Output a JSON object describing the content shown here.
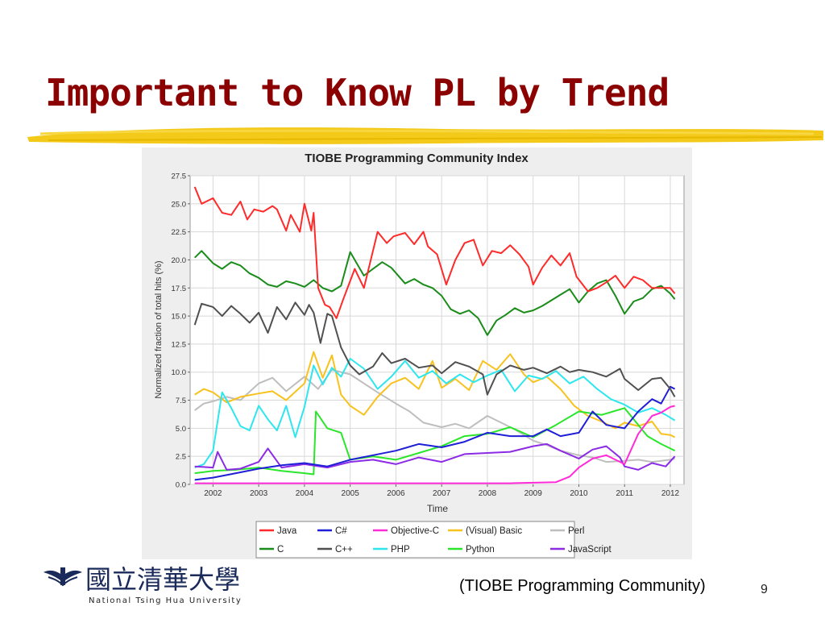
{
  "slide": {
    "title": "Important to Know PL by Trend",
    "caption": "(TIOBE Programming Community)",
    "page_number": "9",
    "university_mark": "國立清華大學",
    "university_name": "National Tsing Hua University",
    "title_color": "#8b0000",
    "highlight_color": "#f2c400"
  },
  "chart_data": {
    "type": "line",
    "title": "TIOBE Programming Community Index",
    "xlabel": "Time",
    "ylabel": "Normalized fraction of total hits (%)",
    "xlim": [
      2001.5,
      2012.3
    ],
    "ylim": [
      0,
      27.5
    ],
    "x_ticks": [
      2002,
      2003,
      2004,
      2005,
      2006,
      2007,
      2008,
      2009,
      2010,
      2011,
      2012
    ],
    "y_ticks": [
      0.0,
      2.5,
      5.0,
      7.5,
      10.0,
      12.5,
      15.0,
      17.5,
      20.0,
      22.5,
      25.0,
      27.5
    ],
    "grid": true,
    "legend_position": "bottom",
    "series": [
      {
        "name": "Java",
        "color": "#ff2a2a",
        "x": [
          2001.6,
          2001.75,
          2002.0,
          2002.2,
          2002.4,
          2002.6,
          2002.75,
          2002.9,
          2003.1,
          2003.3,
          2003.4,
          2003.6,
          2003.7,
          2003.9,
          2004.0,
          2004.15,
          2004.2,
          2004.3,
          2004.45,
          2004.55,
          2004.7,
          2004.85,
          2005.1,
          2005.3,
          2005.6,
          2005.8,
          2005.95,
          2006.2,
          2006.4,
          2006.6,
          2006.7,
          2006.9,
          2007.1,
          2007.3,
          2007.5,
          2007.7,
          2007.9,
          2008.1,
          2008.3,
          2008.5,
          2008.7,
          2008.9,
          2009.0,
          2009.2,
          2009.4,
          2009.6,
          2009.8,
          2009.95,
          2010.2,
          2010.4,
          2010.6,
          2010.8,
          2011.0,
          2011.2,
          2011.4,
          2011.6,
          2011.8,
          2012.0,
          2012.1
        ],
        "y": [
          26.5,
          25.0,
          25.5,
          24.2,
          24.0,
          25.2,
          23.6,
          24.5,
          24.3,
          24.8,
          24.5,
          22.6,
          24.0,
          22.5,
          25.0,
          22.6,
          24.2,
          17.5,
          16.0,
          15.8,
          14.8,
          16.5,
          19.2,
          17.5,
          22.5,
          21.5,
          22.1,
          22.4,
          21.4,
          22.5,
          21.2,
          20.5,
          17.8,
          20.0,
          21.5,
          21.8,
          19.5,
          20.8,
          20.6,
          21.3,
          20.5,
          19.4,
          17.8,
          19.3,
          20.4,
          19.5,
          20.6,
          18.5,
          17.2,
          17.5,
          18.0,
          18.6,
          17.5,
          18.5,
          18.2,
          17.5,
          17.5,
          17.5,
          17.0
        ]
      },
      {
        "name": "C#",
        "color": "#1f1fd8",
        "x": [
          2001.6,
          2002.0,
          2002.5,
          2003.0,
          2003.5,
          2004.0,
          2004.5,
          2005.0,
          2005.5,
          2006.0,
          2006.5,
          2007.0,
          2007.5,
          2008.0,
          2008.5,
          2009.0,
          2009.3,
          2009.6,
          2010.0,
          2010.3,
          2010.6,
          2011.0,
          2011.3,
          2011.6,
          2011.8,
          2012.0,
          2012.1
        ],
        "y": [
          0.4,
          0.6,
          1.0,
          1.4,
          1.7,
          1.9,
          1.6,
          2.2,
          2.6,
          3.0,
          3.6,
          3.3,
          3.8,
          4.6,
          4.3,
          4.3,
          4.9,
          4.3,
          4.6,
          6.5,
          5.3,
          5.0,
          6.5,
          7.6,
          7.2,
          8.7,
          8.5
        ]
      },
      {
        "name": "Objective-C",
        "color": "#ff2ad8",
        "x": [
          2001.6,
          2003.0,
          2005.0,
          2007.0,
          2008.5,
          2009.5,
          2009.8,
          2010.0,
          2010.3,
          2010.6,
          2011.0,
          2011.3,
          2011.6,
          2011.8,
          2012.0,
          2012.1
        ],
        "y": [
          0.1,
          0.1,
          0.1,
          0.1,
          0.1,
          0.2,
          0.7,
          1.5,
          2.3,
          2.6,
          1.8,
          4.5,
          6.1,
          6.4,
          6.9,
          7.0
        ]
      },
      {
        "name": "(Visual) Basic",
        "color": "#f8c21e",
        "x": [
          2001.6,
          2001.8,
          2002.0,
          2002.3,
          2002.6,
          2003.0,
          2003.3,
          2003.6,
          2004.0,
          2004.2,
          2004.4,
          2004.6,
          2004.8,
          2005.0,
          2005.3,
          2005.6,
          2005.9,
          2006.2,
          2006.5,
          2006.8,
          2007.0,
          2007.3,
          2007.6,
          2007.9,
          2008.2,
          2008.5,
          2008.8,
          2009.0,
          2009.3,
          2009.6,
          2009.9,
          2010.2,
          2010.5,
          2010.8,
          2011.0,
          2011.3,
          2011.6,
          2011.8,
          2012.0,
          2012.1
        ],
        "y": [
          8.0,
          8.5,
          8.2,
          7.3,
          7.8,
          8.1,
          8.3,
          7.5,
          9.0,
          11.8,
          9.5,
          11.5,
          8.0,
          7.0,
          6.2,
          7.8,
          9.0,
          9.5,
          8.5,
          11.0,
          8.6,
          9.4,
          8.4,
          11.0,
          10.2,
          11.6,
          9.8,
          9.1,
          9.6,
          8.5,
          7.0,
          6.1,
          5.6,
          5.0,
          5.5,
          5.2,
          5.6,
          4.5,
          4.4,
          4.2
        ]
      },
      {
        "name": "Perl",
        "color": "#bebebe",
        "x": [
          2001.6,
          2001.8,
          2002.0,
          2002.3,
          2002.6,
          2003.0,
          2003.3,
          2003.6,
          2004.0,
          2004.3,
          2004.6,
          2005.0,
          2005.3,
          2005.6,
          2006.0,
          2006.3,
          2006.6,
          2007.0,
          2007.3,
          2007.6,
          2008.0,
          2008.3,
          2008.6,
          2009.0,
          2009.3,
          2009.6,
          2010.0,
          2010.3,
          2010.6,
          2011.0,
          2011.3,
          2011.6,
          2012.0,
          2012.1
        ],
        "y": [
          6.6,
          7.2,
          7.4,
          7.8,
          7.5,
          9.0,
          9.5,
          8.3,
          9.6,
          8.5,
          10.2,
          9.8,
          9.0,
          8.2,
          7.2,
          6.5,
          5.5,
          5.1,
          5.4,
          5.0,
          6.1,
          5.5,
          4.9,
          3.9,
          3.5,
          3.0,
          2.6,
          2.4,
          2.0,
          2.1,
          2.2,
          2.0,
          2.2,
          2.3
        ]
      },
      {
        "name": "C",
        "color": "#1a8c1a",
        "x": [
          2001.6,
          2001.75,
          2002.0,
          2002.2,
          2002.4,
          2002.6,
          2002.8,
          2003.0,
          2003.2,
          2003.4,
          2003.6,
          2003.8,
          2004.0,
          2004.2,
          2004.4,
          2004.6,
          2004.8,
          2005.0,
          2005.3,
          2005.5,
          2005.7,
          2005.9,
          2006.2,
          2006.4,
          2006.6,
          2006.8,
          2007.0,
          2007.2,
          2007.4,
          2007.6,
          2007.8,
          2008.0,
          2008.2,
          2008.4,
          2008.6,
          2008.8,
          2009.0,
          2009.2,
          2009.4,
          2009.6,
          2009.8,
          2010.0,
          2010.2,
          2010.4,
          2010.6,
          2010.8,
          2011.0,
          2011.2,
          2011.4,
          2011.6,
          2011.8,
          2012.0,
          2012.1
        ],
        "y": [
          20.2,
          20.8,
          19.7,
          19.2,
          19.8,
          19.5,
          18.8,
          18.4,
          17.8,
          17.6,
          18.1,
          17.9,
          17.6,
          18.2,
          17.5,
          17.2,
          17.7,
          20.7,
          18.6,
          19.2,
          19.8,
          19.3,
          17.9,
          18.3,
          17.8,
          17.5,
          16.8,
          15.6,
          15.2,
          15.5,
          14.8,
          13.3,
          14.6,
          15.1,
          15.7,
          15.3,
          15.5,
          15.9,
          16.4,
          16.9,
          17.4,
          16.2,
          17.2,
          17.9,
          18.2,
          16.8,
          15.2,
          16.3,
          16.6,
          17.4,
          17.7,
          17.0,
          16.5
        ]
      },
      {
        "name": "C++",
        "color": "#505050",
        "x": [
          2001.6,
          2001.75,
          2002.0,
          2002.2,
          2002.4,
          2002.6,
          2002.8,
          2003.0,
          2003.2,
          2003.4,
          2003.6,
          2003.8,
          2004.0,
          2004.1,
          2004.2,
          2004.35,
          2004.5,
          2004.6,
          2004.8,
          2005.0,
          2005.2,
          2005.5,
          2005.7,
          2005.9,
          2006.2,
          2006.5,
          2006.8,
          2007.0,
          2007.3,
          2007.6,
          2007.9,
          2008.0,
          2008.2,
          2008.5,
          2008.8,
          2009.0,
          2009.3,
          2009.6,
          2009.8,
          2010.0,
          2010.3,
          2010.6,
          2010.9,
          2011.0,
          2011.3,
          2011.6,
          2011.8,
          2012.0,
          2012.1
        ],
        "y": [
          14.2,
          16.1,
          15.8,
          15.0,
          15.9,
          15.2,
          14.4,
          15.3,
          13.5,
          15.8,
          14.7,
          16.2,
          15.1,
          16.0,
          15.3,
          12.6,
          15.2,
          15.0,
          12.2,
          10.6,
          9.8,
          10.5,
          11.7,
          10.8,
          11.2,
          10.4,
          10.6,
          9.9,
          10.9,
          10.5,
          9.8,
          8.0,
          9.8,
          10.6,
          10.2,
          10.4,
          9.9,
          10.5,
          10.0,
          10.2,
          10.0,
          9.6,
          10.3,
          9.4,
          8.4,
          9.4,
          9.5,
          8.5,
          7.8
        ]
      },
      {
        "name": "PHP",
        "color": "#2ee6ee",
        "x": [
          2001.6,
          2001.8,
          2002.0,
          2002.2,
          2002.4,
          2002.6,
          2002.8,
          2003.0,
          2003.2,
          2003.4,
          2003.6,
          2003.8,
          2004.0,
          2004.2,
          2004.4,
          2004.6,
          2004.8,
          2005.0,
          2005.3,
          2005.6,
          2005.9,
          2006.2,
          2006.5,
          2006.8,
          2007.1,
          2007.4,
          2007.7,
          2008.0,
          2008.3,
          2008.6,
          2008.9,
          2009.2,
          2009.5,
          2009.8,
          2010.1,
          2010.4,
          2010.7,
          2011.0,
          2011.3,
          2011.6,
          2011.9,
          2012.1
        ],
        "y": [
          1.5,
          1.8,
          3.0,
          8.2,
          6.8,
          5.2,
          4.8,
          7.0,
          5.8,
          4.8,
          7.0,
          4.2,
          6.9,
          10.6,
          8.9,
          10.4,
          9.6,
          11.2,
          10.3,
          8.5,
          9.6,
          11.0,
          9.5,
          10.1,
          9.0,
          9.8,
          9.1,
          9.7,
          10.2,
          8.3,
          9.7,
          9.4,
          10.1,
          9.0,
          9.6,
          8.5,
          7.6,
          7.1,
          6.4,
          6.8,
          6.2,
          5.7
        ]
      },
      {
        "name": "Python",
        "color": "#2ae62a",
        "x": [
          2001.6,
          2002.0,
          2002.5,
          2003.0,
          2003.5,
          2004.0,
          2004.2,
          2004.25,
          2004.5,
          2004.8,
          2005.0,
          2005.5,
          2006.0,
          2006.5,
          2007.0,
          2007.5,
          2008.0,
          2008.5,
          2009.0,
          2009.5,
          2010.0,
          2010.5,
          2011.0,
          2011.5,
          2011.8,
          2012.0,
          2012.1
        ],
        "y": [
          1.0,
          1.2,
          1.3,
          1.5,
          1.2,
          1.0,
          0.9,
          6.5,
          5.0,
          4.6,
          2.2,
          2.5,
          2.2,
          2.8,
          3.4,
          4.3,
          4.5,
          5.1,
          4.2,
          5.3,
          6.5,
          6.2,
          6.8,
          4.3,
          3.6,
          3.2,
          3.0
        ]
      },
      {
        "name": "JavaScript",
        "color": "#8c2ae6",
        "x": [
          2001.6,
          2002.0,
          2002.1,
          2002.3,
          2002.6,
          2003.0,
          2003.2,
          2003.5,
          2004.0,
          2004.5,
          2005.0,
          2005.5,
          2006.0,
          2006.5,
          2007.0,
          2007.5,
          2008.0,
          2008.5,
          2009.0,
          2009.3,
          2009.6,
          2010.0,
          2010.3,
          2010.6,
          2010.9,
          2011.0,
          2011.3,
          2011.6,
          2011.9,
          2012.1
        ],
        "y": [
          1.6,
          1.5,
          2.9,
          1.3,
          1.4,
          2.0,
          3.2,
          1.5,
          1.8,
          1.5,
          2.0,
          2.2,
          1.8,
          2.4,
          2.0,
          2.7,
          2.8,
          2.9,
          3.4,
          3.6,
          3.0,
          2.3,
          3.1,
          3.4,
          2.4,
          1.6,
          1.3,
          1.9,
          1.6,
          2.5
        ]
      }
    ],
    "legend_rows": [
      [
        "Java",
        "C#",
        "Objective-C",
        "(Visual) Basic",
        "Perl"
      ],
      [
        "C",
        "C++",
        "PHP",
        "Python",
        "JavaScript"
      ]
    ]
  }
}
